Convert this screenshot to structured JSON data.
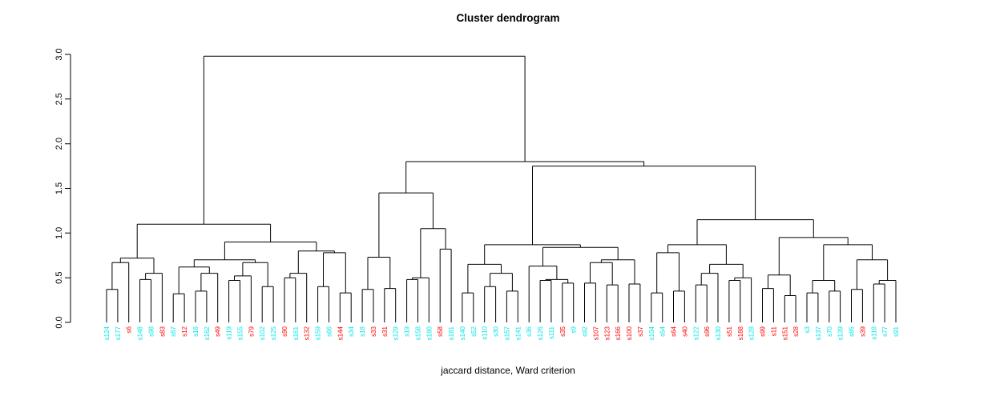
{
  "chart_data": {
    "type": "dendrogram",
    "title": "Cluster dendrogram",
    "xlabel": "jaccard distance, Ward criterion",
    "ylabel": "",
    "ylim": [
      0,
      3.0
    ],
    "y_ticks": [
      "0.0",
      "0.5",
      "1.0",
      "1.5",
      "2.0",
      "2.5",
      "3.0"
    ],
    "grid": false,
    "line_color": "#000000",
    "label_colors": {
      "red": "#FF0000",
      "cyan": "#00E5E5"
    },
    "leaves": [
      {
        "label": "s124",
        "color": "cyan"
      },
      {
        "label": "s177",
        "color": "cyan"
      },
      {
        "label": "s6",
        "color": "red"
      },
      {
        "label": "s148",
        "color": "cyan"
      },
      {
        "label": "s98",
        "color": "cyan"
      },
      {
        "label": "s83",
        "color": "red"
      },
      {
        "label": "s67",
        "color": "cyan"
      },
      {
        "label": "s12",
        "color": "red"
      },
      {
        "label": "s16",
        "color": "cyan"
      },
      {
        "label": "s162",
        "color": "cyan"
      },
      {
        "label": "s49",
        "color": "red"
      },
      {
        "label": "s119",
        "color": "cyan"
      },
      {
        "label": "s155",
        "color": "cyan"
      },
      {
        "label": "s79",
        "color": "red"
      },
      {
        "label": "s102",
        "color": "cyan"
      },
      {
        "label": "s125",
        "color": "cyan"
      },
      {
        "label": "s90",
        "color": "red"
      },
      {
        "label": "s161",
        "color": "cyan"
      },
      {
        "label": "s132",
        "color": "red"
      },
      {
        "label": "s159",
        "color": "cyan"
      },
      {
        "label": "s66",
        "color": "cyan"
      },
      {
        "label": "s144",
        "color": "red"
      },
      {
        "label": "s34",
        "color": "cyan"
      },
      {
        "label": "s18",
        "color": "cyan"
      },
      {
        "label": "s33",
        "color": "red"
      },
      {
        "label": "s31",
        "color": "red"
      },
      {
        "label": "s129",
        "color": "cyan"
      },
      {
        "label": "s19",
        "color": "cyan"
      },
      {
        "label": "s158",
        "color": "cyan"
      },
      {
        "label": "s180",
        "color": "cyan"
      },
      {
        "label": "s58",
        "color": "red"
      },
      {
        "label": "s181",
        "color": "cyan"
      },
      {
        "label": "s140",
        "color": "cyan"
      },
      {
        "label": "s52",
        "color": "cyan"
      },
      {
        "label": "s110",
        "color": "cyan"
      },
      {
        "label": "s30",
        "color": "cyan"
      },
      {
        "label": "s157",
        "color": "cyan"
      },
      {
        "label": "s141",
        "color": "cyan"
      },
      {
        "label": "s36",
        "color": "cyan"
      },
      {
        "label": "s126",
        "color": "cyan"
      },
      {
        "label": "s111",
        "color": "cyan"
      },
      {
        "label": "s35",
        "color": "red"
      },
      {
        "label": "s9",
        "color": "cyan"
      },
      {
        "label": "s92",
        "color": "cyan"
      },
      {
        "label": "s107",
        "color": "red"
      },
      {
        "label": "s123",
        "color": "red"
      },
      {
        "label": "s166",
        "color": "red"
      },
      {
        "label": "s100",
        "color": "red"
      },
      {
        "label": "s37",
        "color": "red"
      },
      {
        "label": "s104",
        "color": "cyan"
      },
      {
        "label": "s54",
        "color": "cyan"
      },
      {
        "label": "s64",
        "color": "red"
      },
      {
        "label": "s40",
        "color": "red"
      },
      {
        "label": "s122",
        "color": "cyan"
      },
      {
        "label": "s96",
        "color": "red"
      },
      {
        "label": "s130",
        "color": "cyan"
      },
      {
        "label": "s51",
        "color": "red"
      },
      {
        "label": "s188",
        "color": "red"
      },
      {
        "label": "s128",
        "color": "cyan"
      },
      {
        "label": "s99",
        "color": "red"
      },
      {
        "label": "s11",
        "color": "red"
      },
      {
        "label": "s151",
        "color": "red"
      },
      {
        "label": "s28",
        "color": "red"
      },
      {
        "label": "s3",
        "color": "cyan"
      },
      {
        "label": "s137",
        "color": "cyan"
      },
      {
        "label": "s70",
        "color": "cyan"
      },
      {
        "label": "s139",
        "color": "cyan"
      },
      {
        "label": "s85",
        "color": "cyan"
      },
      {
        "label": "s39",
        "color": "red"
      },
      {
        "label": "s118",
        "color": "cyan"
      },
      {
        "label": "s77",
        "color": "cyan"
      },
      {
        "label": "s91",
        "color": "cyan"
      }
    ],
    "merges": {
      "h": 2.98,
      "c": [
        {
          "h": 1.1,
          "c": [
            {
              "h": 0.72,
              "c": [
                {
                  "h": 0.67,
                  "c": [
                    {
                      "h": 0.37,
                      "c": [
                        0,
                        1
                      ]
                    },
                    2
                  ]
                },
                {
                  "h": 0.55,
                  "c": [
                    {
                      "h": 0.48,
                      "c": [
                        3,
                        4
                      ]
                    },
                    5
                  ]
                }
              ]
            },
            {
              "h": 0.9,
              "c": [
                {
                  "h": 0.7,
                  "c": [
                    {
                      "h": 0.62,
                      "c": [
                        {
                          "h": 0.32,
                          "c": [
                            6,
                            7
                          ]
                        },
                        {
                          "h": 0.55,
                          "c": [
                            {
                              "h": 0.35,
                              "c": [
                                8,
                                9
                              ]
                            },
                            10
                          ]
                        }
                      ]
                    },
                    {
                      "h": 0.67,
                      "c": [
                        {
                          "h": 0.52,
                          "c": [
                            {
                              "h": 0.47,
                              "c": [
                                11,
                                12
                              ]
                            },
                            13
                          ]
                        },
                        {
                          "h": 0.4,
                          "c": [
                            14,
                            15
                          ]
                        }
                      ]
                    }
                  ]
                },
                {
                  "h": 0.8,
                  "c": [
                    {
                      "h": 0.55,
                      "c": [
                        {
                          "h": 0.5,
                          "c": [
                            16,
                            17
                          ]
                        },
                        18
                      ]
                    },
                    {
                      "h": 0.78,
                      "c": [
                        {
                          "h": 0.4,
                          "c": [
                            19,
                            20
                          ]
                        },
                        {
                          "h": 0.33,
                          "c": [
                            21,
                            22
                          ]
                        }
                      ]
                    }
                  ]
                }
              ]
            }
          ]
        },
        {
          "h": 1.8,
          "c": [
            {
              "h": 1.45,
              "c": [
                {
                  "h": 0.73,
                  "c": [
                    {
                      "h": 0.37,
                      "c": [
                        23,
                        24
                      ]
                    },
                    {
                      "h": 0.38,
                      "c": [
                        25,
                        26
                      ]
                    }
                  ]
                },
                {
                  "h": 1.05,
                  "c": [
                    {
                      "h": 0.5,
                      "c": [
                        {
                          "h": 0.48,
                          "c": [
                            27,
                            28
                          ]
                        },
                        29
                      ]
                    },
                    {
                      "h": 0.82,
                      "c": [
                        30,
                        31
                      ]
                    }
                  ]
                }
              ]
            },
            {
              "h": 1.75,
              "c": [
                {
                  "h": 0.87,
                  "c": [
                    {
                      "h": 0.65,
                      "c": [
                        {
                          "h": 0.33,
                          "c": [
                            32,
                            33
                          ]
                        },
                        {
                          "h": 0.55,
                          "c": [
                            {
                              "h": 0.4,
                              "c": [
                                34,
                                35
                              ]
                            },
                            {
                              "h": 0.35,
                              "c": [
                                36,
                                37
                              ]
                            }
                          ]
                        }
                      ]
                    },
                    {
                      "h": 0.84,
                      "c": [
                        {
                          "h": 0.63,
                          "c": [
                            38,
                            {
                              "h": 0.48,
                              "c": [
                                {
                                  "h": 0.47,
                                  "c": [
                                    39,
                                    40
                                  ]
                                },
                                {
                                  "h": 0.44,
                                  "c": [
                                    41,
                                    42
                                  ]
                                }
                              ]
                            }
                          ]
                        },
                        {
                          "h": 0.7,
                          "c": [
                            {
                              "h": 0.67,
                              "c": [
                                {
                                  "h": 0.44,
                                  "c": [
                                    43,
                                    44
                                  ]
                                },
                                {
                                  "h": 0.42,
                                  "c": [
                                    45,
                                    46
                                  ]
                                }
                              ]
                            },
                            {
                              "h": 0.43,
                              "c": [
                                47,
                                48
                              ]
                            }
                          ]
                        }
                      ]
                    }
                  ]
                },
                {
                  "h": 1.15,
                  "c": [
                    {
                      "h": 0.87,
                      "c": [
                        {
                          "h": 0.78,
                          "c": [
                            {
                              "h": 0.33,
                              "c": [
                                49,
                                50
                              ]
                            },
                            {
                              "h": 0.35,
                              "c": [
                                51,
                                52
                              ]
                            }
                          ]
                        },
                        {
                          "h": 0.65,
                          "c": [
                            {
                              "h": 0.55,
                              "c": [
                                {
                                  "h": 0.42,
                                  "c": [
                                    53,
                                    54
                                  ]
                                },
                                55
                              ]
                            },
                            {
                              "h": 0.5,
                              "c": [
                                {
                                  "h": 0.47,
                                  "c": [
                                    56,
                                    57
                                  ]
                                },
                                58
                              ]
                            }
                          ]
                        }
                      ]
                    },
                    {
                      "h": 0.95,
                      "c": [
                        {
                          "h": 0.53,
                          "c": [
                            {
                              "h": 0.38,
                              "c": [
                                59,
                                60
                              ]
                            },
                            {
                              "h": 0.3,
                              "c": [
                                61,
                                62
                              ]
                            }
                          ]
                        },
                        {
                          "h": 0.87,
                          "c": [
                            {
                              "h": 0.47,
                              "c": [
                                {
                                  "h": 0.33,
                                  "c": [
                                    63,
                                    64
                                  ]
                                },
                                {
                                  "h": 0.35,
                                  "c": [
                                    65,
                                    66
                                  ]
                                }
                              ]
                            },
                            {
                              "h": 0.7,
                              "c": [
                                {
                                  "h": 0.37,
                                  "c": [
                                    67,
                                    68
                                  ]
                                },
                                {
                                  "h": 0.47,
                                  "c": [
                                    {
                                      "h": 0.43,
                                      "c": [
                                        69,
                                        70
                                      ]
                                    },
                                    71
                                  ]
                                }
                              ]
                            }
                          ]
                        }
                      ]
                    }
                  ]
                }
              ]
            }
          ]
        }
      ]
    }
  }
}
